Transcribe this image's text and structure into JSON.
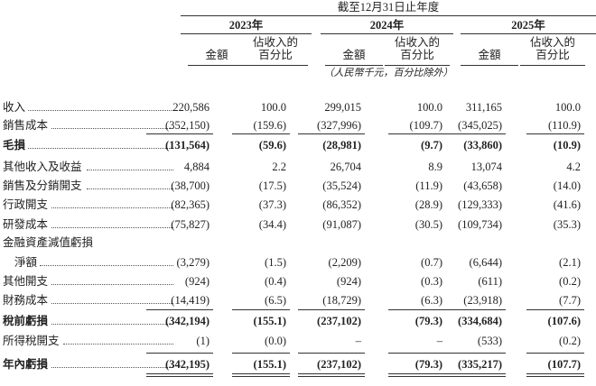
{
  "header": {
    "period": "截至12月31日止年度",
    "years": [
      "2023年",
      "2024年",
      "2025年"
    ],
    "amount_label": "金額",
    "pct_label": [
      "佔收入的",
      "百分比"
    ],
    "unit_note": "（人民幣千元，百分比除外）"
  },
  "rows": [
    {
      "label": "收入",
      "values": [
        "220,586",
        "100.0",
        "299,015",
        "100.0",
        "311,165",
        "100.0"
      ]
    },
    {
      "label": "銷售成本",
      "values": [
        "(352,150)",
        "(159.6)",
        "(327,996)",
        "(109.7)",
        "(345,025)",
        "(110.9)"
      ]
    },
    {
      "label": "毛損",
      "values": [
        "(131,564)",
        "(59.6)",
        "(28,981)",
        "(9.7)",
        "(33,860)",
        "(10.9)"
      ],
      "bold": true,
      "line_above": true
    },
    {
      "label": "其他收入及收益",
      "values": [
        "4,884",
        "2.2",
        "26,704",
        "8.9",
        "13,074",
        "4.2"
      ]
    },
    {
      "label": "銷售及分銷開支",
      "values": [
        "(38,700)",
        "(17.5)",
        "(35,524)",
        "(11.9)",
        "(43,658)",
        "(14.0)"
      ]
    },
    {
      "label": "行政開支",
      "values": [
        "(82,365)",
        "(37.3)",
        "(86,352)",
        "(28.9)",
        "(129,333)",
        "(41.6)"
      ]
    },
    {
      "label": "研發成本",
      "values": [
        "(75,827)",
        "(34.4)",
        "(91,087)",
        "(30.5)",
        "(109,734)",
        "(35.3)"
      ]
    },
    {
      "label": "金融資產減值虧損"
    },
    {
      "label": "淨額",
      "values": [
        "(3,279)",
        "(1.5)",
        "(2,209)",
        "(0.7)",
        "(6,644)",
        "(2.1)"
      ],
      "indent": true
    },
    {
      "label": "其他開支",
      "values": [
        "(924)",
        "(0.4)",
        "(924)",
        "(0.3)",
        "(611)",
        "(0.2)"
      ]
    },
    {
      "label": "財務成本",
      "values": [
        "(14,419)",
        "(6.5)",
        "(18,729)",
        "(6.3)",
        "(23,918)",
        "(7.7)"
      ]
    },
    {
      "label": "稅前虧損",
      "values": [
        "(342,194)",
        "(155.1)",
        "(237,102)",
        "(79.3)",
        "(334,684)",
        "(107.6)"
      ],
      "bold": true,
      "line_above": true
    },
    {
      "label": "所得稅開支",
      "values": [
        "(1)",
        "(0.0)",
        "–",
        "–",
        "(533)",
        "(0.2)"
      ]
    },
    {
      "label": "年內虧損",
      "values": [
        "(342,195)",
        "(155.1)",
        "(237,102)",
        "(79.3)",
        "(335,217)",
        "(107.7)"
      ],
      "bold": true,
      "line_above": true,
      "double_underline": true
    }
  ]
}
